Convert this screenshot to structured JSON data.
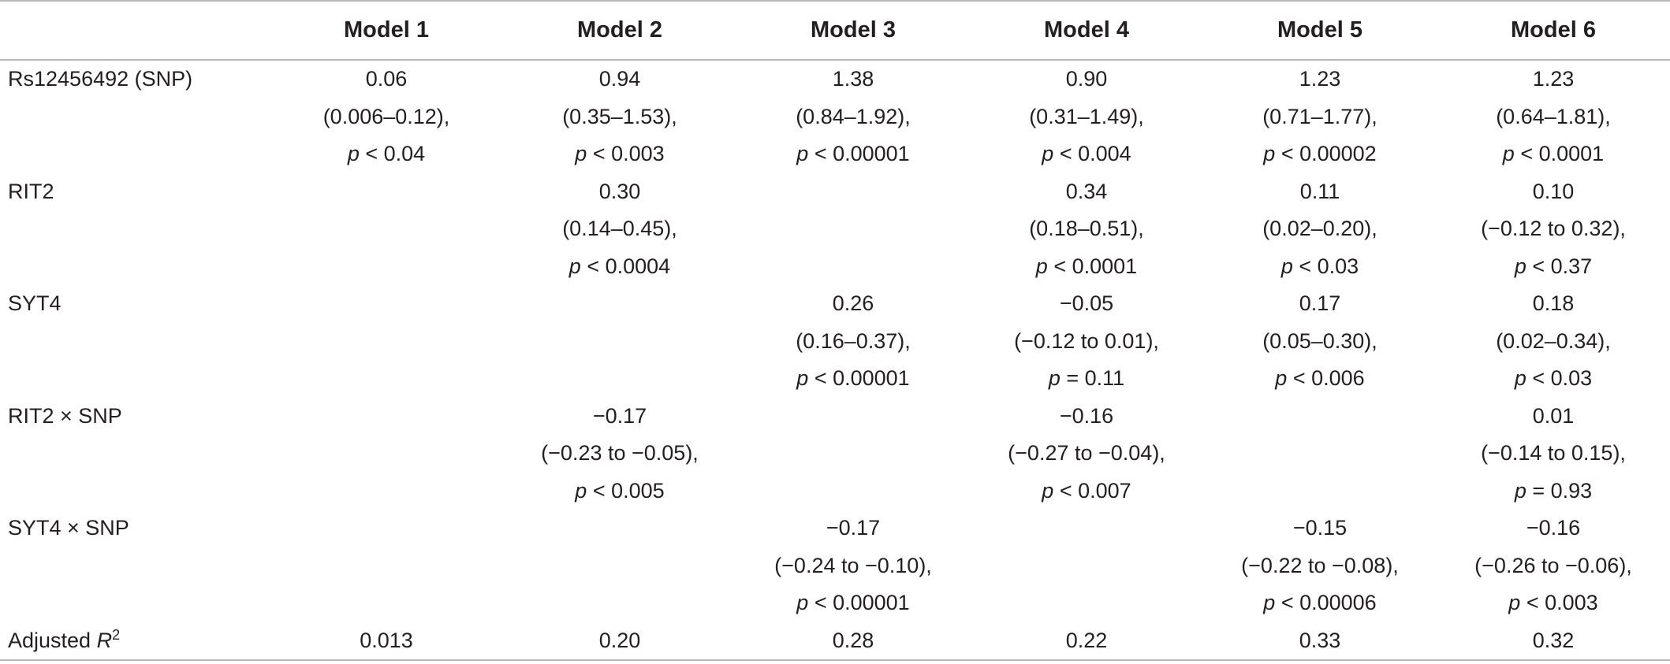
{
  "columns": [
    "",
    "Model 1",
    "Model 2",
    "Model 3",
    "Model 4",
    "Model 5",
    "Model 6"
  ],
  "rows": [
    {
      "label": "Rs12456492 (SNP)",
      "cells": [
        {
          "est": "0.06",
          "ci": "(0.006–0.12),",
          "p_op": "< 0.04"
        },
        {
          "est": "0.94",
          "ci": "(0.35–1.53),",
          "p_op": "< 0.003"
        },
        {
          "est": "1.38",
          "ci": "(0.84–1.92),",
          "p_op": "< 0.00001"
        },
        {
          "est": "0.90",
          "ci": "(0.31–1.49),",
          "p_op": "< 0.004"
        },
        {
          "est": "1.23",
          "ci": "(0.71–1.77),",
          "p_op": "< 0.00002"
        },
        {
          "est": "1.23",
          "ci": "(0.64–1.81),",
          "p_op": "< 0.0001"
        }
      ]
    },
    {
      "label": "RIT2",
      "cells": [
        null,
        {
          "est": "0.30",
          "ci": "(0.14–0.45),",
          "p_op": "< 0.0004"
        },
        null,
        {
          "est": "0.34",
          "ci": "(0.18–0.51),",
          "p_op": "< 0.0001"
        },
        {
          "est": "0.11",
          "ci": "(0.02–0.20),",
          "p_op": "< 0.03"
        },
        {
          "est": "0.10",
          "ci": "(−0.12 to 0.32),",
          "p_op": "< 0.37"
        }
      ]
    },
    {
      "label": "SYT4",
      "cells": [
        null,
        null,
        {
          "est": "0.26",
          "ci": "(0.16–0.37),",
          "p_op": "< 0.00001"
        },
        {
          "est": "−0.05",
          "ci": "(−0.12 to 0.01),",
          "p_op": "= 0.11"
        },
        {
          "est": "0.17",
          "ci": "(0.05–0.30),",
          "p_op": "< 0.006"
        },
        {
          "est": "0.18",
          "ci": "(0.02–0.34),",
          "p_op": "< 0.03"
        }
      ]
    },
    {
      "label": "RIT2 × SNP",
      "cells": [
        null,
        {
          "est": "−0.17",
          "ci": "(−0.23 to −0.05),",
          "p_op": "< 0.005"
        },
        null,
        {
          "est": "−0.16",
          "ci": "(−0.27 to −0.04),",
          "p_op": "< 0.007"
        },
        null,
        {
          "est": "0.01",
          "ci": "(−0.14 to 0.15),",
          "p_op": "= 0.93"
        }
      ]
    },
    {
      "label": "SYT4 × SNP",
      "cells": [
        null,
        null,
        {
          "est": "−0.17",
          "ci": "(−0.24 to −0.10),",
          "p_op": "< 0.00001"
        },
        null,
        {
          "est": "−0.15",
          "ci": "(−0.22 to −0.08),",
          "p_op": "< 0.00006"
        },
        {
          "est": "−0.16",
          "ci": "(−0.26 to −0.06),",
          "p_op": "< 0.003"
        }
      ]
    }
  ],
  "footer_row": {
    "label_prefix": "Adjusted ",
    "label_var": "R",
    "label_sup": "2",
    "values": [
      "0.013",
      "0.20",
      "0.28",
      "0.22",
      "0.33",
      "0.32"
    ]
  },
  "p_symbol": "p"
}
